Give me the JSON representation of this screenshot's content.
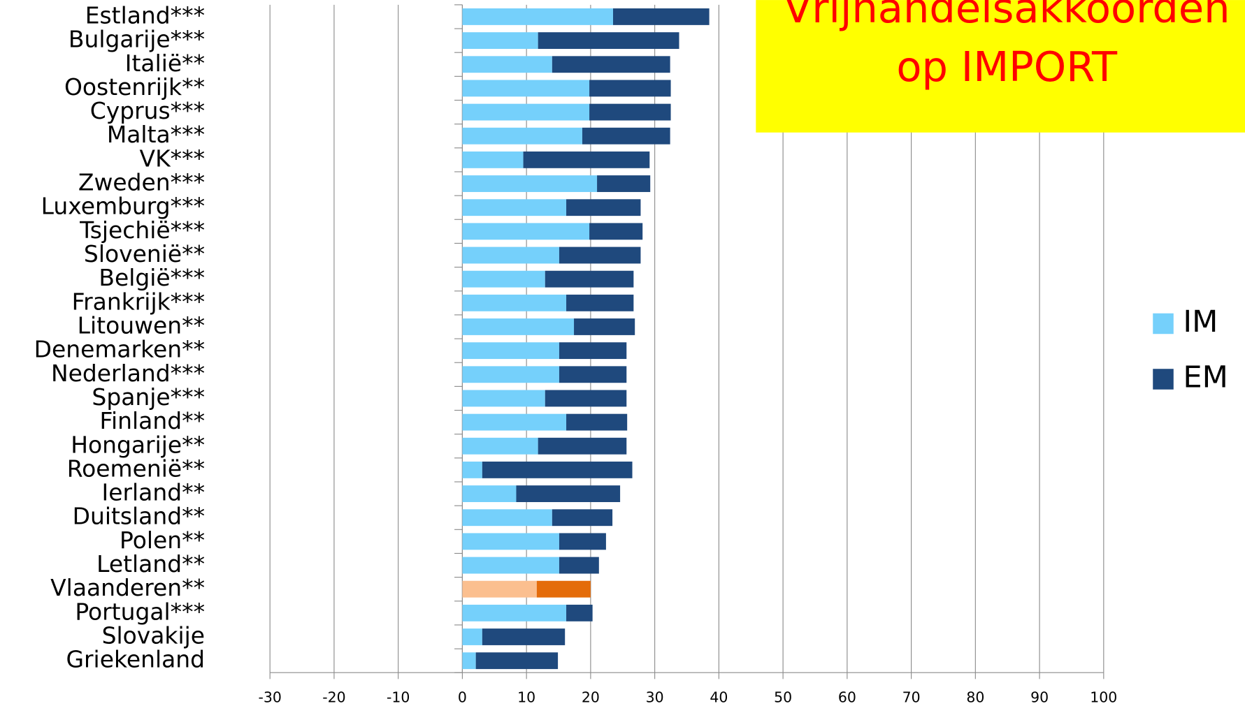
{
  "chart_data": {
    "type": "stacked_barh",
    "title": [
      "Vrijhandelsakkoorden",
      "op IMPORT"
    ],
    "categories": [
      "Estland***",
      "Bulgarije***",
      "Italië**",
      "Oostenrijk**",
      "Cyprus***",
      "Malta***",
      "VK***",
      "Zweden***",
      "Luxemburg***",
      "Tsjechië***",
      "Slovenië**",
      "België***",
      "Frankrijk***",
      "Litouwen**",
      "Denemarken**",
      "Nederland***",
      "Spanje***",
      "Finland**",
      "Hongarije**",
      "Roemenië**",
      "Ierland**",
      "Duitsland**",
      "Polen**",
      "Letland**",
      "Vlaanderen**",
      "Portugal***",
      "Slovakije",
      "Griekenland"
    ],
    "series": [
      {
        "name": "IM",
        "color": "#75d0fb",
        "point_colors": {
          "24": "#fbbf8f"
        },
        "values": [
          23.5,
          11.8,
          14,
          19.8,
          19.8,
          18.7,
          9.5,
          21,
          16.2,
          19.8,
          15.1,
          12.9,
          16.2,
          17.4,
          15.1,
          15.1,
          12.9,
          16.2,
          11.8,
          3.1,
          8.4,
          14,
          15.1,
          15.1,
          11.6,
          16.2,
          3.1,
          2.1
        ]
      },
      {
        "name": "EM",
        "color": "#1f497d",
        "point_colors": {
          "24": "#e46c0a"
        },
        "values": [
          15,
          22,
          18.4,
          12.7,
          12.7,
          13.7,
          19.7,
          8.3,
          11.6,
          8.3,
          12.7,
          13.8,
          10.5,
          9.5,
          10.5,
          10.5,
          12.7,
          9.5,
          13.8,
          23.4,
          16.2,
          9.4,
          7.3,
          6.2,
          8.4,
          4.1,
          12.9,
          12.8
        ]
      }
    ],
    "xlim": [
      -30,
      100
    ],
    "xticks": [
      -30,
      -20,
      -10,
      0,
      10,
      20,
      30,
      40,
      50,
      60,
      70,
      80,
      90,
      100
    ],
    "grid": true,
    "legend": "right"
  }
}
